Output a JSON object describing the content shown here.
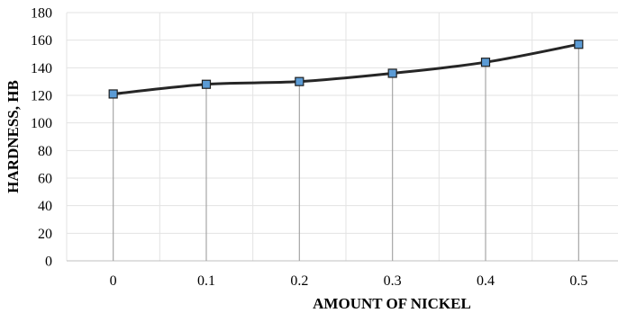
{
  "chart_data": {
    "type": "line",
    "x": [
      0,
      0.1,
      0.2,
      0.3,
      0.4,
      0.5
    ],
    "x_tick_labels": [
      "0",
      "0.1",
      "0.2",
      "0.3",
      "0.4",
      "0.5"
    ],
    "series": [
      {
        "values": [
          121,
          128,
          130,
          136,
          144,
          157
        ]
      }
    ],
    "title": "",
    "xlabel": "AMOUNT OF NICKEL",
    "ylabel": "HARDNESS, HB",
    "ylim": [
      0,
      180
    ],
    "y_ticks": [
      0,
      20,
      40,
      60,
      80,
      100,
      120,
      140,
      160,
      180
    ],
    "drop_lines": true,
    "grid": true,
    "legend": "none",
    "colors": {
      "line": "#262626",
      "marker_fill": "#5b9bd5",
      "marker_edge": "#1f1f1f",
      "drop_line": "#a6a6a6",
      "grid": "#e3e3e3",
      "axis": "#bfbfbf"
    }
  }
}
